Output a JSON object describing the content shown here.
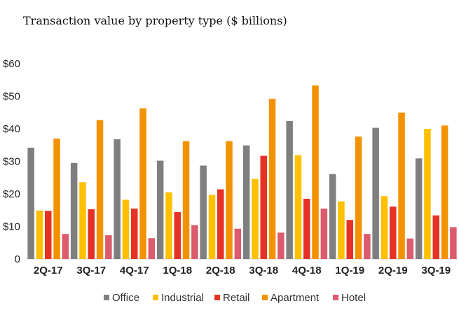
{
  "chart_data": {
    "type": "bar",
    "title": "Transaction value by property type ($ billions)",
    "xlabel": "",
    "ylabel": "",
    "ylim": [
      0,
      60
    ],
    "yticks": [
      "0",
      "$10",
      "$20",
      "$30",
      "$40",
      "$50",
      "$60"
    ],
    "yticks_values": [
      0,
      10,
      20,
      30,
      40,
      50,
      60
    ],
    "grid": false,
    "legend_position": "bottom",
    "categories": [
      "2Q-17",
      "3Q-17",
      "4Q-17",
      "1Q-18",
      "2Q-18",
      "3Q-18",
      "4Q-18",
      "1Q-19",
      "2Q-19",
      "3Q-19"
    ],
    "series": [
      {
        "name": "Office",
        "color": "#7f7f7f",
        "values": [
          34.2,
          29.5,
          36.8,
          30.2,
          28.7,
          34.9,
          42.4,
          26.1,
          40.3,
          30.9
        ]
      },
      {
        "name": "Industrial",
        "color": "#ffc000",
        "values": [
          14.9,
          23.6,
          18.2,
          20.5,
          19.7,
          24.6,
          31.9,
          17.7,
          19.3,
          40.0
        ]
      },
      {
        "name": "Retail",
        "color": "#e53225",
        "values": [
          14.8,
          15.3,
          15.5,
          14.4,
          21.4,
          31.7,
          18.5,
          12.0,
          16.1,
          13.4
        ]
      },
      {
        "name": "Apartment",
        "color": "#f39200",
        "values": [
          37.0,
          42.7,
          46.3,
          36.2,
          36.2,
          49.2,
          53.3,
          37.6,
          45.0,
          41.0
        ]
      },
      {
        "name": "Hotel",
        "color": "#dc5b6d",
        "values": [
          7.7,
          7.3,
          6.4,
          10.4,
          9.3,
          8.1,
          15.5,
          7.7,
          6.3,
          9.8
        ]
      }
    ]
  }
}
